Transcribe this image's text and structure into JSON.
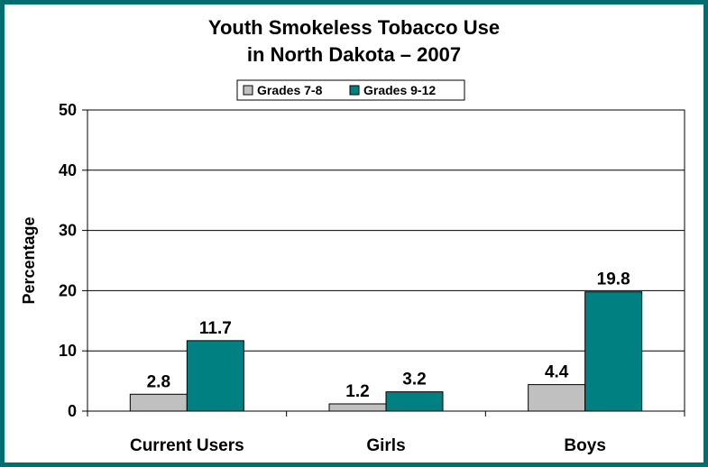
{
  "chart_data": {
    "type": "bar",
    "title": "Youth Smokeless Tobacco Use",
    "subtitle": "in North Dakota – 2007",
    "ylabel": "Percentage",
    "xlabel": "",
    "categories": [
      "Current Users",
      "Girls",
      "Boys"
    ],
    "series": [
      {
        "name": "Grades 7-8",
        "color": "#c0c0c0",
        "values": [
          2.8,
          1.2,
          4.4
        ],
        "labels": [
          "2.8",
          "1.2",
          "4.4"
        ]
      },
      {
        "name": "Grades 9-12",
        "color": "#008080",
        "values": [
          11.7,
          3.2,
          19.8
        ],
        "labels": [
          "11.7",
          "3.2",
          "19.8"
        ]
      }
    ],
    "ylim": [
      0,
      50
    ],
    "yticks": [
      0,
      10,
      20,
      30,
      40,
      50
    ],
    "grid": true,
    "legend_position": "top-center"
  },
  "colors": {
    "frame": "#006e6e",
    "background": "#ffffff"
  }
}
